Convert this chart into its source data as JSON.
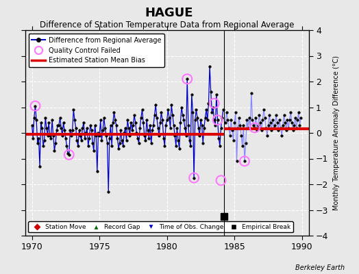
{
  "title": "HAGUE",
  "subtitle": "Difference of Station Temperature Data from Regional Average",
  "ylabel": "Monthly Temperature Anomaly Difference (°C)",
  "xlim": [
    1969.5,
    1990.5
  ],
  "ylim": [
    -4,
    4
  ],
  "yticks": [
    -4,
    -3,
    -2,
    -1,
    0,
    1,
    2,
    3,
    4
  ],
  "xticks": [
    1970,
    1975,
    1980,
    1985,
    1990
  ],
  "background_color": "#e8e8e8",
  "plot_bg_color": "#e8e8e8",
  "line_color_early": "#0000cc",
  "line_color_late": "#8888ff",
  "marker_color": "#000000",
  "bias_color": "#dd0000",
  "bias_value_early": -0.05,
  "bias_value_late": 0.15,
  "break_year": 1984.25,
  "empirical_break_x": 1984.25,
  "empirical_break_y": -3.25,
  "watermark": "Berkeley Earth",
  "qc_failed_x": [
    1970.25,
    1972.75,
    1981.5,
    1982.0,
    1983.5,
    1983.75,
    1984.0,
    1985.75,
    1986.5
  ],
  "qc_failed_y": [
    1.05,
    -0.85,
    2.1,
    -1.75,
    1.15,
    0.5,
    -1.85,
    -1.1,
    0.2
  ],
  "x_early": [
    1970.0,
    1970.083,
    1970.167,
    1970.25,
    1970.333,
    1970.417,
    1970.5,
    1970.583,
    1970.667,
    1970.75,
    1970.833,
    1970.917,
    1971.0,
    1971.083,
    1971.167,
    1971.25,
    1971.333,
    1971.417,
    1971.5,
    1971.583,
    1971.667,
    1971.75,
    1971.833,
    1971.917,
    1972.0,
    1972.083,
    1972.167,
    1972.25,
    1972.333,
    1972.417,
    1972.5,
    1972.583,
    1972.667,
    1972.75,
    1972.833,
    1972.917,
    1973.0,
    1973.083,
    1973.167,
    1973.25,
    1973.333,
    1973.417,
    1973.5,
    1973.583,
    1973.667,
    1973.75,
    1973.833,
    1973.917,
    1974.0,
    1974.083,
    1974.167,
    1974.25,
    1974.333,
    1974.417,
    1974.5,
    1974.583,
    1974.667,
    1974.75,
    1974.833,
    1974.917,
    1975.0,
    1975.083,
    1975.167,
    1975.25,
    1975.333,
    1975.417,
    1975.5,
    1975.583,
    1975.667,
    1975.75,
    1975.833,
    1975.917,
    1976.0,
    1976.083,
    1976.167,
    1976.25,
    1976.333,
    1976.417,
    1976.5,
    1976.583,
    1976.667,
    1976.75,
    1976.833,
    1976.917,
    1977.0,
    1977.083,
    1977.167,
    1977.25,
    1977.333,
    1977.417,
    1977.5,
    1977.583,
    1977.667,
    1977.75,
    1977.833,
    1977.917,
    1978.0,
    1978.083,
    1978.167,
    1978.25,
    1978.333,
    1978.417,
    1978.5,
    1978.583,
    1978.667,
    1978.75,
    1978.833,
    1978.917,
    1979.0,
    1979.083,
    1979.167,
    1979.25,
    1979.333,
    1979.417,
    1979.5,
    1979.583,
    1979.667,
    1979.75,
    1979.833,
    1979.917,
    1980.0,
    1980.083,
    1980.167,
    1980.25,
    1980.333,
    1980.417,
    1980.5,
    1980.583,
    1980.667,
    1980.75,
    1980.833,
    1980.917,
    1981.0,
    1981.083,
    1981.167,
    1981.25,
    1981.333,
    1981.417,
    1981.5,
    1981.583,
    1981.667,
    1981.75,
    1981.833,
    1981.917,
    1982.0,
    1982.083,
    1982.167,
    1982.25,
    1982.333,
    1982.417,
    1982.5,
    1982.583,
    1982.667,
    1982.75,
    1982.833,
    1982.917,
    1983.0,
    1983.083,
    1983.167,
    1983.25,
    1983.333,
    1983.417,
    1983.5,
    1983.583,
    1983.667,
    1983.75,
    1983.833,
    1983.917,
    1984.0,
    1984.083,
    1984.167
  ],
  "y_early": [
    0.3,
    -0.2,
    0.6,
    1.05,
    0.5,
    -0.4,
    -0.2,
    -1.3,
    0.4,
    0.2,
    -0.5,
    -0.3,
    0.6,
    0.2,
    -0.1,
    0.4,
    -0.1,
    -0.2,
    0.5,
    -0.1,
    -0.7,
    -0.4,
    0.1,
    0.3,
    0.3,
    0.6,
    0.2,
    -0.1,
    0.4,
    0.1,
    -0.2,
    -0.5,
    -0.8,
    -0.85,
    0.1,
    -0.1,
    0.1,
    0.9,
    0.5,
    0.2,
    -0.3,
    -0.5,
    0.1,
    -0.1,
    -0.3,
    0.2,
    0.4,
    -0.2,
    0.0,
    0.2,
    -0.5,
    -0.2,
    0.3,
    0.1,
    -0.4,
    -0.7,
    0.3,
    -0.1,
    -1.5,
    0.0,
    -0.1,
    0.5,
    -0.3,
    0.1,
    0.6,
    0.2,
    -0.1,
    -0.4,
    -2.3,
    -0.2,
    0.3,
    -0.5,
    0.4,
    0.8,
    0.5,
    0.3,
    -0.2,
    -0.6,
    -0.4,
    0.1,
    -0.3,
    -0.5,
    0.0,
    0.2,
    -0.3,
    0.5,
    0.2,
    -0.1,
    0.4,
    0.1,
    0.3,
    0.7,
    0.4,
    0.0,
    -0.2,
    -0.4,
    0.2,
    0.6,
    0.9,
    0.4,
    -0.1,
    -0.3,
    0.5,
    0.1,
    -0.2,
    0.3,
    -0.4,
    0.1,
    0.3,
    0.7,
    1.1,
    0.6,
    0.2,
    -0.1,
    0.4,
    0.8,
    0.5,
    -0.2,
    -0.5,
    0.3,
    0.5,
    0.9,
    0.6,
    0.2,
    1.1,
    0.7,
    0.3,
    -0.1,
    -0.5,
    0.2,
    -0.3,
    -0.6,
    0.4,
    1.0,
    0.7,
    0.5,
    0.2,
    -0.1,
    2.1,
    0.3,
    -0.3,
    -0.5,
    1.5,
    0.8,
    -1.75,
    0.5,
    0.9,
    0.6,
    0.2,
    -0.1,
    0.5,
    0.3,
    -0.4,
    0.2,
    0.6,
    0.9,
    0.5,
    1.15,
    2.6,
    1.6,
    0.8,
    1.0,
    0.5,
    0.3,
    1.5,
    0.5,
    -0.2,
    -0.5,
    0.2,
    0.6,
    0.9
  ],
  "x_late": [
    1984.333,
    1984.417,
    1984.5,
    1984.583,
    1984.667,
    1984.75,
    1984.833,
    1984.917,
    1985.0,
    1985.083,
    1985.167,
    1985.25,
    1985.333,
    1985.417,
    1985.5,
    1985.583,
    1985.667,
    1985.75,
    1985.833,
    1985.917,
    1986.0,
    1986.083,
    1986.167,
    1986.25,
    1986.333,
    1986.417,
    1986.5,
    1986.583,
    1986.667,
    1986.75,
    1986.833,
    1986.917,
    1987.0,
    1987.083,
    1987.167,
    1987.25,
    1987.333,
    1987.417,
    1987.5,
    1987.583,
    1987.667,
    1987.75,
    1987.833,
    1987.917,
    1988.0,
    1988.083,
    1988.167,
    1988.25,
    1988.333,
    1988.417,
    1988.5,
    1988.583,
    1988.667,
    1988.75,
    1988.833,
    1988.917,
    1989.0,
    1989.083,
    1989.167,
    1989.25,
    1989.333,
    1989.417,
    1989.5,
    1989.583,
    1989.667,
    1989.75,
    1989.833,
    1989.917
  ],
  "y_late": [
    0.4,
    0.8,
    0.5,
    0.2,
    -0.1,
    0.5,
    0.1,
    -0.3,
    0.4,
    0.8,
    -1.1,
    0.2,
    0.6,
    0.3,
    -0.1,
    -0.5,
    0.3,
    -1.1,
    -0.4,
    0.5,
    0.2,
    0.6,
    0.2,
    1.55,
    0.5,
    0.3,
    0.2,
    0.6,
    0.1,
    0.3,
    0.7,
    0.4,
    0.1,
    0.5,
    0.9,
    0.6,
    0.2,
    -0.1,
    0.3,
    0.7,
    0.4,
    0.1,
    0.5,
    0.2,
    0.3,
    0.7,
    0.4,
    0.1,
    0.5,
    0.2,
    -0.1,
    0.3,
    0.7,
    0.4,
    0.1,
    0.5,
    0.2,
    0.5,
    0.8,
    0.4,
    0.1,
    0.3,
    0.6,
    0.2,
    0.5,
    0.8,
    0.3,
    0.6
  ]
}
